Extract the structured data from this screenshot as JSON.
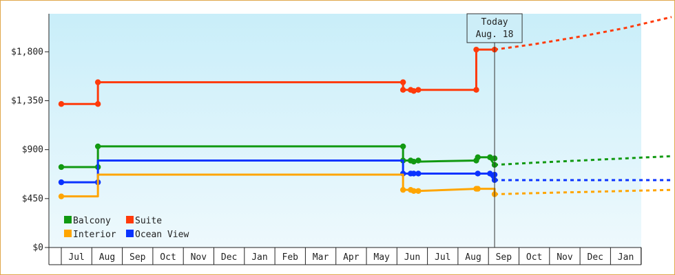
{
  "colors": {
    "Balcony": "#119911",
    "Suite": "#ff3a0a",
    "Interior": "#ffa500",
    "Ocean View": "#0a33ff",
    "plot_top": "#c9eef9",
    "plot_bottom": "#eef9fd",
    "frame": "#e0a64a"
  },
  "today_callout": {
    "line1": "Today",
    "line2": "Aug. 18"
  },
  "legend": [
    {
      "name": "Balcony",
      "color": "#119911"
    },
    {
      "name": "Suite",
      "color": "#ff3a0a"
    },
    {
      "name": "Interior",
      "color": "#ffa500"
    },
    {
      "name": "Ocean View",
      "color": "#0a33ff"
    }
  ],
  "chart_data": {
    "type": "line",
    "title": "",
    "xlabel": "",
    "ylabel": "",
    "ylim": [
      0,
      2150
    ],
    "yticks": [
      0,
      450,
      900,
      1350,
      1800
    ],
    "ytick_labels": [
      "$0",
      "$450",
      "$900",
      "$1,350",
      "$1,800"
    ],
    "x_months": [
      "",
      "Jul",
      "Aug",
      "Sep",
      "Oct",
      "Nov",
      "Dec",
      "Jan",
      "Feb",
      "Mar",
      "Apr",
      "May",
      "Jun",
      "Jul",
      "Aug",
      "Sep",
      "Oct",
      "Nov",
      "Dec",
      "Jan"
    ],
    "x_unit": "months from first axis slot",
    "today_x": 14.2,
    "step": true,
    "series": [
      {
        "name": "Suite",
        "points": [
          [
            0,
            1320
          ],
          [
            1.2,
            1320
          ],
          [
            1.2,
            1520
          ],
          [
            11.2,
            1520
          ],
          [
            11.2,
            1450
          ],
          [
            11.45,
            1450
          ],
          [
            11.55,
            1440
          ],
          [
            11.7,
            1450
          ],
          [
            13.6,
            1450
          ],
          [
            13.6,
            1820
          ],
          [
            14.2,
            1820
          ]
        ],
        "forecast": [
          [
            14.2,
            1820
          ],
          [
            15.5,
            1870
          ],
          [
            17,
            1940
          ],
          [
            18.5,
            2020
          ],
          [
            20,
            2120
          ]
        ]
      },
      {
        "name": "Balcony",
        "points": [
          [
            0,
            740
          ],
          [
            1.2,
            740
          ],
          [
            1.2,
            930
          ],
          [
            11.2,
            930
          ],
          [
            11.2,
            800
          ],
          [
            11.55,
            800
          ],
          [
            11.7,
            790
          ],
          [
            13.6,
            800
          ],
          [
            13.6,
            830
          ],
          [
            14.05,
            830
          ],
          [
            14.05,
            820
          ],
          [
            14.2,
            760
          ]
        ],
        "forecast": [
          [
            14.2,
            760
          ],
          [
            15.5,
            780
          ],
          [
            17,
            800
          ],
          [
            18.5,
            820
          ],
          [
            20,
            840
          ]
        ]
      },
      {
        "name": "Ocean View",
        "points": [
          [
            0,
            600
          ],
          [
            1.2,
            600
          ],
          [
            1.2,
            800
          ],
          [
            11.2,
            800
          ],
          [
            11.2,
            680
          ],
          [
            11.55,
            680
          ],
          [
            11.7,
            680
          ],
          [
            13.6,
            680
          ],
          [
            14.05,
            680
          ],
          [
            14.05,
            670
          ],
          [
            14.2,
            620
          ]
        ],
        "forecast": [
          [
            14.2,
            620
          ],
          [
            20,
            620
          ]
        ]
      },
      {
        "name": "Interior",
        "points": [
          [
            0,
            470
          ],
          [
            1.2,
            470
          ],
          [
            1.2,
            670
          ],
          [
            11.2,
            670
          ],
          [
            11.2,
            530
          ],
          [
            11.55,
            530
          ],
          [
            11.7,
            520
          ],
          [
            13.6,
            540
          ],
          [
            14.2,
            540
          ],
          [
            14.2,
            490
          ]
        ],
        "forecast": [
          [
            14.2,
            490
          ],
          [
            15.5,
            500
          ],
          [
            17,
            510
          ],
          [
            18.5,
            520
          ],
          [
            20,
            530
          ]
        ]
      }
    ],
    "markers": {
      "Suite": [
        [
          0,
          1320
        ],
        [
          1.2,
          1320
        ],
        [
          1.2,
          1520
        ],
        [
          11.2,
          1520
        ],
        [
          11.2,
          1450
        ],
        [
          11.45,
          1450
        ],
        [
          11.55,
          1440
        ],
        [
          11.7,
          1450
        ],
        [
          13.6,
          1450
        ],
        [
          13.6,
          1820
        ],
        [
          14.2,
          1820
        ]
      ],
      "Balcony": [
        [
          0,
          740
        ],
        [
          1.2,
          740
        ],
        [
          1.2,
          930
        ],
        [
          11.2,
          930
        ],
        [
          11.2,
          800
        ],
        [
          11.45,
          800
        ],
        [
          11.55,
          790
        ],
        [
          11.7,
          800
        ],
        [
          13.6,
          800
        ],
        [
          13.65,
          830
        ],
        [
          14.05,
          830
        ],
        [
          14.2,
          820
        ],
        [
          14.2,
          760
        ]
      ],
      "Ocean View": [
        [
          0,
          600
        ],
        [
          1.2,
          600
        ],
        [
          11.2,
          680
        ],
        [
          11.45,
          680
        ],
        [
          11.55,
          680
        ],
        [
          11.7,
          680
        ],
        [
          13.65,
          680
        ],
        [
          14.05,
          680
        ],
        [
          14.2,
          670
        ],
        [
          14.2,
          620
        ]
      ],
      "Interior": [
        [
          0,
          470
        ],
        [
          11.2,
          530
        ],
        [
          11.45,
          530
        ],
        [
          11.55,
          520
        ],
        [
          11.7,
          520
        ],
        [
          13.6,
          540
        ],
        [
          13.65,
          540
        ],
        [
          14.2,
          490
        ]
      ]
    },
    "legend_position": "bottom-left",
    "grid": false
  }
}
